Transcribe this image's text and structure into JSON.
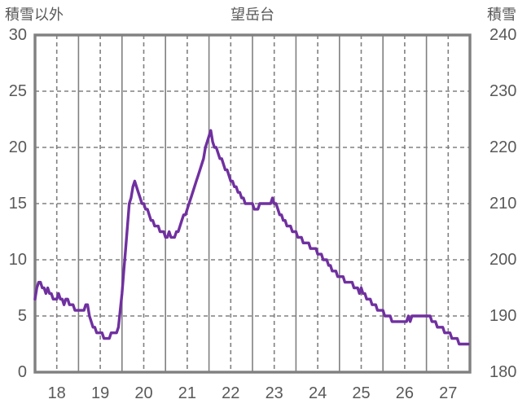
{
  "chart_data": {
    "type": "line",
    "title": "望岳台",
    "background_color": "#FFFFFF",
    "left_axis": {
      "title": "積雪以外",
      "range": [
        0,
        30
      ],
      "tick_step": 5,
      "ticks": [
        0,
        5,
        10,
        15,
        20,
        25,
        30
      ]
    },
    "right_axis": {
      "title": "積雪",
      "range": [
        180,
        240
      ],
      "tick_step": 10,
      "ticks": [
        180,
        190,
        200,
        210,
        220,
        230,
        240
      ]
    },
    "x_axis": {
      "range_days": [
        18,
        28
      ],
      "tick_labels": [
        "18",
        "19",
        "20",
        "21",
        "22",
        "23",
        "24",
        "25",
        "26",
        "27"
      ],
      "solid_gridlines_at": [
        19,
        20,
        21,
        22,
        23,
        24,
        25,
        26,
        27
      ],
      "dashed_gridlines_at": [
        18.5,
        19.5,
        20.5,
        21.5,
        22.5,
        23.5,
        24.5,
        25.5,
        26.5,
        27.5
      ]
    },
    "grid": {
      "horizontal_dashed_at_left_values": [
        5,
        10,
        15,
        20,
        25
      ],
      "border": true
    },
    "colors": {
      "line": "#7030A0",
      "grid": "#808080",
      "border": "#808080",
      "text": "#595959"
    },
    "series": [
      {
        "name": "積雪",
        "axis": "right",
        "color": "#7030A0",
        "x_start_day": 18,
        "x_step_days": 0.0416666667,
        "values_cm": [
          193,
          195,
          196,
          196,
          195,
          195,
          194,
          195,
          194,
          194,
          193,
          193,
          193,
          194,
          193,
          193,
          192,
          193,
          193,
          192,
          192,
          192,
          191,
          191,
          191,
          191,
          191,
          191,
          192,
          192,
          190,
          189,
          188,
          188,
          187,
          187,
          187,
          187,
          186,
          186,
          186,
          186,
          187,
          187,
          187,
          187,
          188,
          191,
          194,
          198,
          202,
          206,
          210,
          211,
          213,
          214,
          213,
          212,
          211,
          210,
          210,
          209,
          209,
          208,
          207,
          207,
          206,
          206,
          206,
          205,
          205,
          205,
          204,
          204,
          205,
          204,
          204,
          204,
          205,
          205,
          206,
          207,
          208,
          208,
          209,
          210,
          211,
          212,
          213,
          214,
          215,
          216,
          217,
          218,
          220,
          221,
          222,
          223,
          221,
          220,
          220,
          219,
          218,
          218,
          217,
          216,
          216,
          215,
          214,
          214,
          213,
          213,
          212,
          212,
          211,
          211,
          210,
          210,
          210,
          210,
          210,
          209,
          209,
          209,
          210,
          210,
          210,
          210,
          210,
          210,
          210,
          211,
          210,
          210,
          209,
          208,
          208,
          207,
          207,
          206,
          206,
          206,
          205,
          205,
          205,
          204,
          204,
          204,
          203,
          203,
          203,
          203,
          202,
          202,
          202,
          202,
          201,
          201,
          201,
          200,
          200,
          200,
          199,
          199,
          198,
          198,
          198,
          197,
          197,
          197,
          197,
          196,
          196,
          196,
          196,
          196,
          195,
          195,
          195,
          194,
          195,
          194,
          194,
          193,
          193,
          193,
          192,
          192,
          192,
          191,
          191,
          191,
          191,
          190,
          190,
          190,
          190,
          189,
          189,
          189,
          189,
          189,
          189,
          189,
          189,
          189,
          190,
          189,
          190,
          190,
          190,
          190,
          190,
          190,
          190,
          190,
          190,
          190,
          190,
          189,
          189,
          189,
          188,
          188,
          188,
          188,
          187,
          187,
          187,
          187,
          186,
          186,
          186,
          186,
          185,
          185,
          185,
          185,
          185,
          185
        ]
      }
    ]
  }
}
